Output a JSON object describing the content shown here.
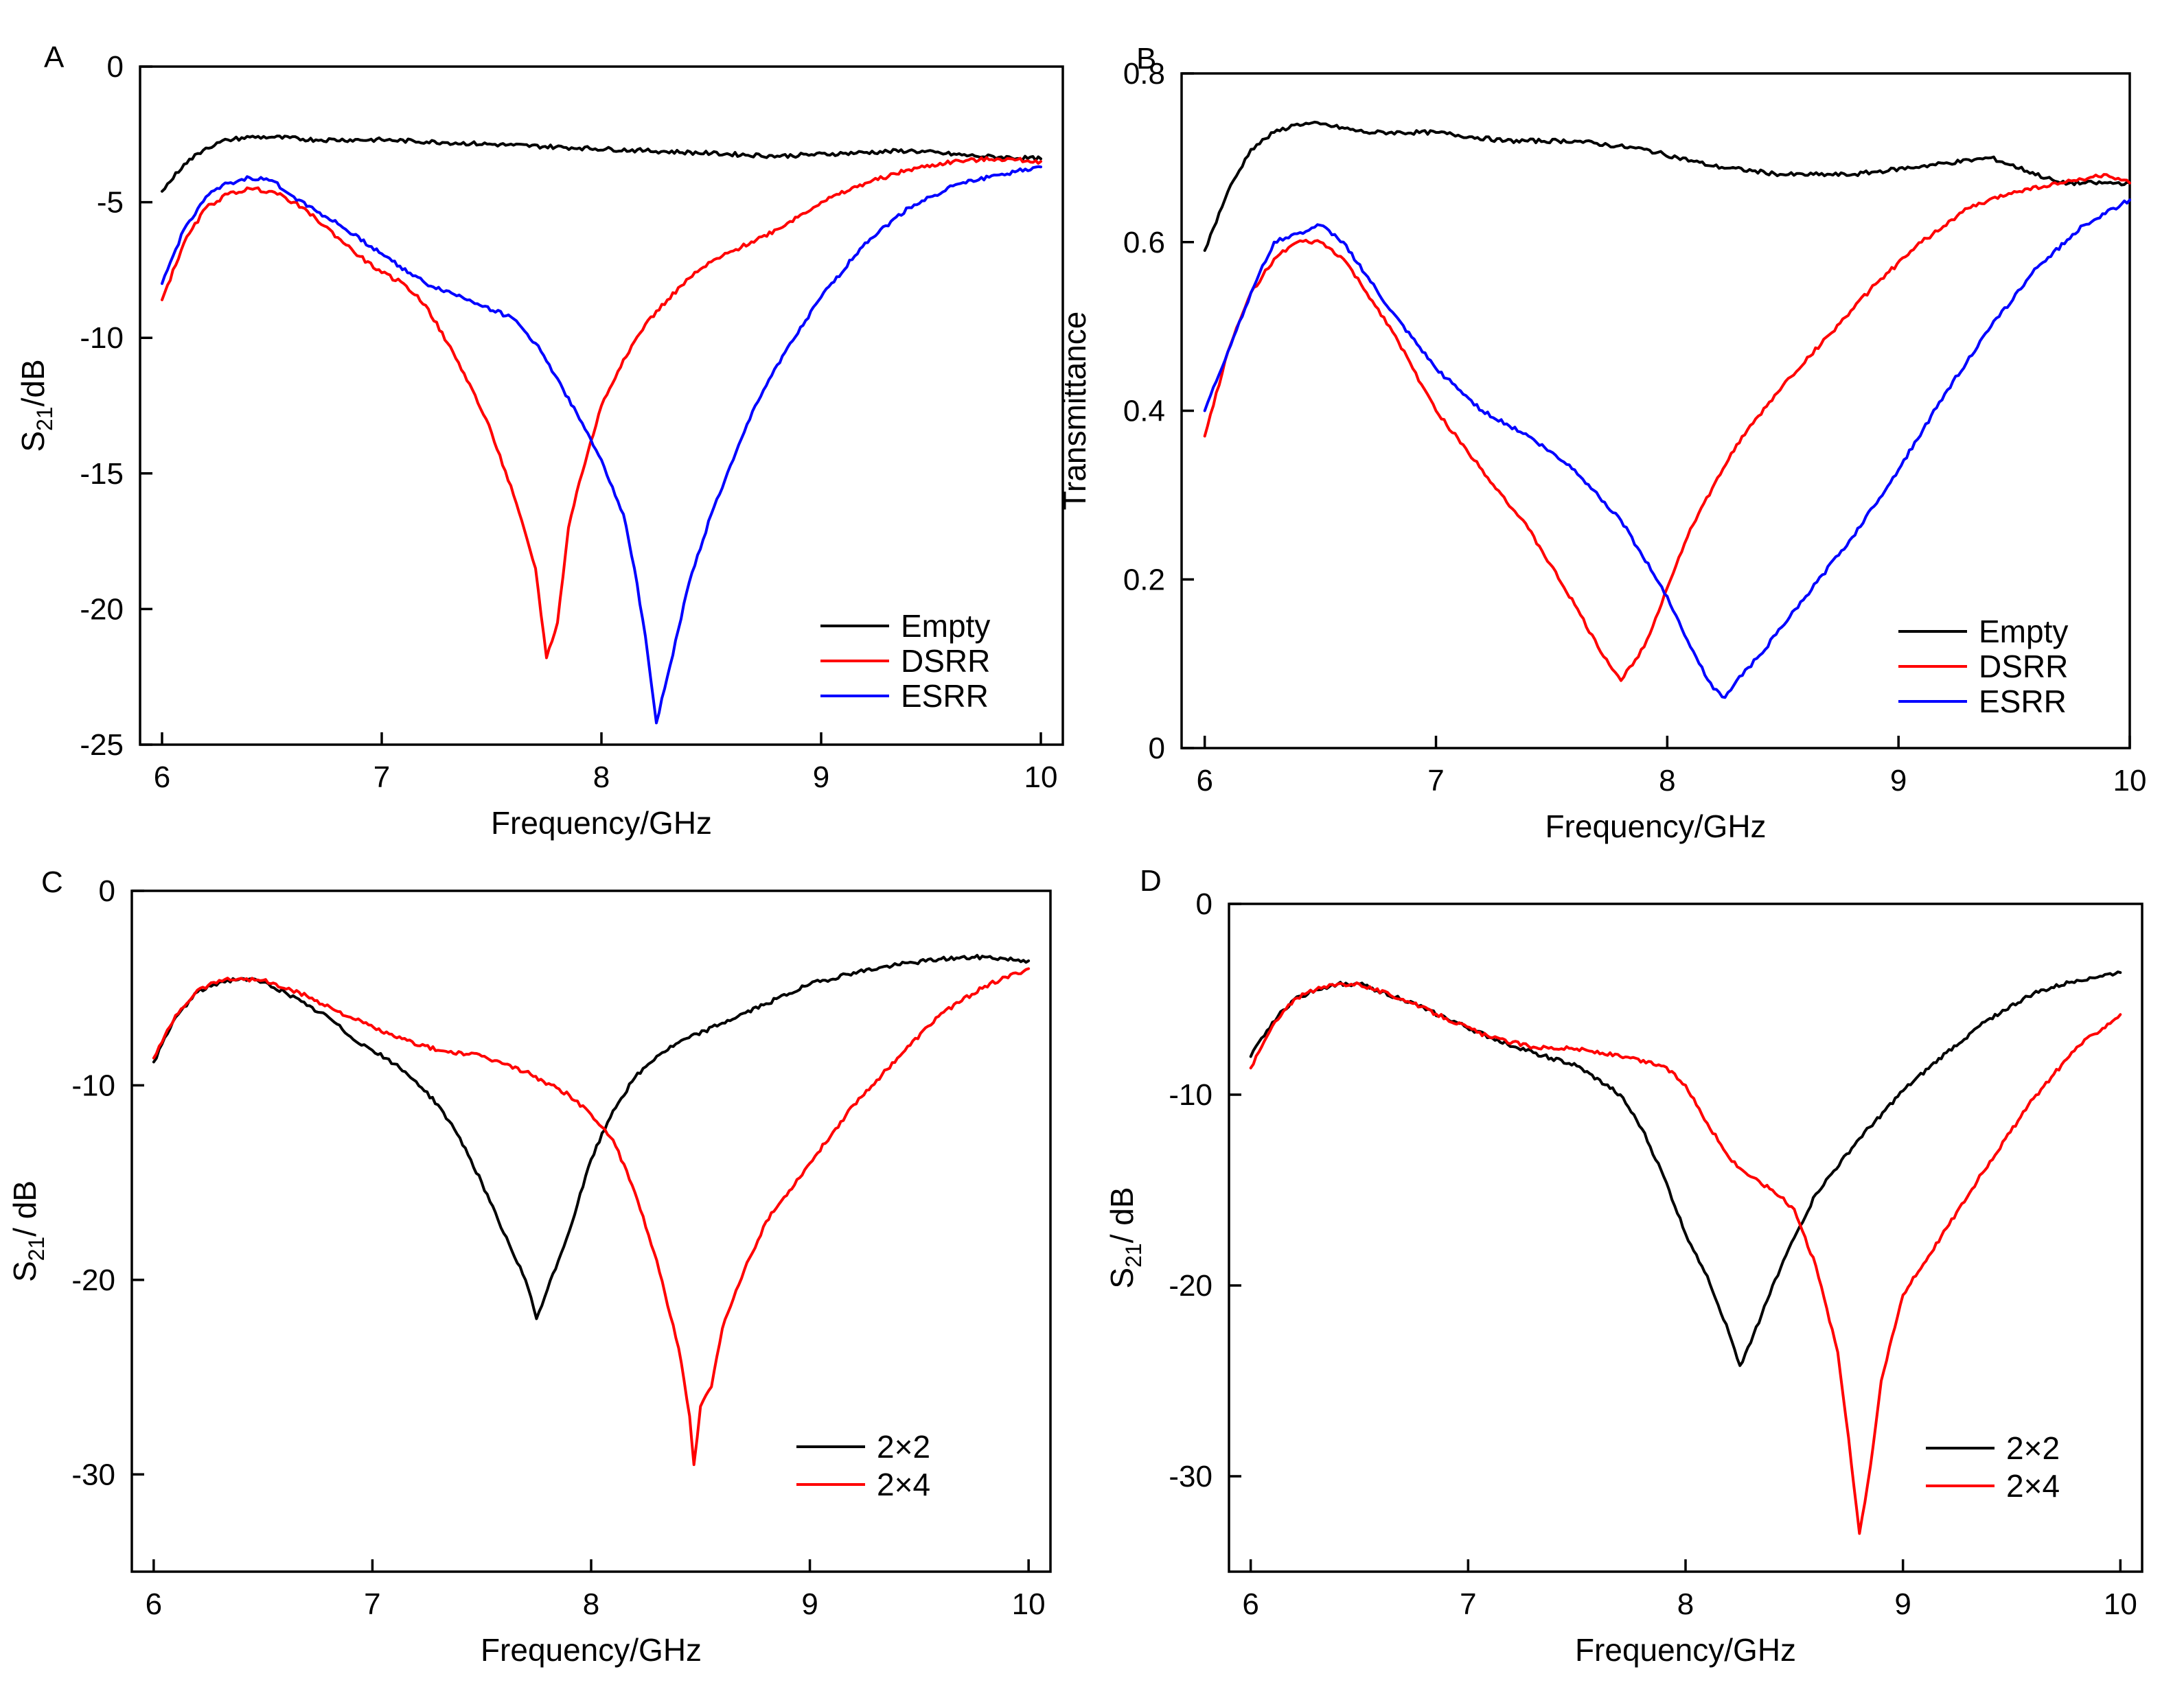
{
  "colors": {
    "black": "#000000",
    "red": "#ff0000",
    "blue": "#0000ff"
  },
  "chart_data": [
    {
      "id": "A",
      "type": "line",
      "panel_label": "A",
      "xlabel": "Frequency/GHz",
      "ylabel_main": "S",
      "ylabel_sub": "21",
      "ylabel_rest": "/dB",
      "xlim": [
        5.9,
        10.1
      ],
      "ylim": [
        -25,
        0
      ],
      "xticks": [
        6,
        7,
        8,
        9,
        10
      ],
      "yticks": [
        0,
        -5,
        -10,
        -15,
        -20,
        -25
      ],
      "xtick_labels": [
        "6",
        "7",
        "8",
        "9",
        "10"
      ],
      "ytick_labels": [
        "0",
        "-5",
        "-10",
        "-15",
        "-20",
        "-25"
      ],
      "legend": {
        "position": "bottom-right"
      },
      "series": [
        {
          "name": "Empty",
          "color": "#000000",
          "x": [
            6.0,
            6.1,
            6.2,
            6.3,
            6.4,
            6.5,
            6.7,
            7.0,
            7.3,
            7.6,
            7.9,
            8.2,
            8.5,
            8.8,
            9.1,
            9.4,
            9.7,
            10.0
          ],
          "y": [
            -4.6,
            -3.6,
            -3.0,
            -2.7,
            -2.6,
            -2.6,
            -2.7,
            -2.7,
            -2.8,
            -2.9,
            -3.0,
            -3.1,
            -3.2,
            -3.3,
            -3.2,
            -3.1,
            -3.3,
            -3.4
          ]
        },
        {
          "name": "DSRR",
          "color": "#ff0000",
          "x": [
            6.0,
            6.1,
            6.2,
            6.3,
            6.4,
            6.5,
            6.6,
            6.7,
            6.8,
            6.9,
            7.0,
            7.1,
            7.2,
            7.3,
            7.4,
            7.5,
            7.6,
            7.7,
            7.75,
            7.8,
            7.85,
            7.9,
            8.0,
            8.1,
            8.2,
            8.3,
            8.4,
            8.5,
            8.6,
            8.8,
            9.0,
            9.2,
            9.4,
            9.6,
            9.8,
            10.0
          ],
          "y": [
            -8.6,
            -6.5,
            -5.2,
            -4.7,
            -4.5,
            -4.6,
            -5.0,
            -5.6,
            -6.3,
            -7.0,
            -7.6,
            -8.0,
            -8.8,
            -10.2,
            -11.7,
            -13.5,
            -15.8,
            -18.5,
            -21.8,
            -20.5,
            -17.0,
            -15.3,
            -12.5,
            -10.8,
            -9.5,
            -8.6,
            -7.8,
            -7.2,
            -6.8,
            -6.0,
            -5.0,
            -4.3,
            -3.8,
            -3.5,
            -3.4,
            -3.5
          ]
        },
        {
          "name": "ESRR",
          "color": "#0000ff",
          "x": [
            6.0,
            6.1,
            6.2,
            6.3,
            6.4,
            6.5,
            6.6,
            6.8,
            7.0,
            7.2,
            7.4,
            7.6,
            7.7,
            7.8,
            7.9,
            8.0,
            8.1,
            8.15,
            8.2,
            8.25,
            8.3,
            8.4,
            8.5,
            8.6,
            8.7,
            8.8,
            9.0,
            9.2,
            9.4,
            9.6,
            9.8,
            10.0
          ],
          "y": [
            -8.0,
            -6.0,
            -4.8,
            -4.3,
            -4.1,
            -4.2,
            -4.8,
            -5.8,
            -6.9,
            -8.0,
            -8.6,
            -9.3,
            -10.2,
            -11.5,
            -13.0,
            -14.5,
            -16.5,
            -18.5,
            -21.0,
            -24.2,
            -22.5,
            -19.0,
            -16.5,
            -14.5,
            -12.5,
            -11.0,
            -8.5,
            -6.5,
            -5.2,
            -4.4,
            -4.0,
            -3.7
          ]
        }
      ]
    },
    {
      "id": "B",
      "type": "line",
      "panel_label": "B",
      "xlabel": "Frequency/GHz",
      "ylabel": "Transmittance",
      "xlim": [
        5.9,
        10.0
      ],
      "ylim": [
        0,
        0.8
      ],
      "xticks": [
        6,
        7,
        8,
        9,
        10
      ],
      "yticks": [
        0,
        0.2,
        0.4,
        0.6,
        0.8
      ],
      "xtick_labels": [
        "6",
        "7",
        "8",
        "9",
        "10"
      ],
      "ytick_labels": [
        "0",
        "0.2",
        "0.4",
        "0.6",
        "0.8"
      ],
      "legend": {
        "position": "bottom-right"
      },
      "series": [
        {
          "name": "Empty",
          "color": "#000000",
          "x": [
            6.0,
            6.1,
            6.2,
            6.3,
            6.4,
            6.5,
            6.7,
            7.0,
            7.3,
            7.6,
            7.9,
            8.2,
            8.5,
            8.8,
            9.1,
            9.4,
            9.7,
            10.0
          ],
          "y": [
            0.59,
            0.66,
            0.71,
            0.73,
            0.74,
            0.74,
            0.73,
            0.73,
            0.72,
            0.72,
            0.71,
            0.69,
            0.68,
            0.68,
            0.69,
            0.7,
            0.67,
            0.67
          ]
        },
        {
          "name": "DSRR",
          "color": "#ff0000",
          "x": [
            6.0,
            6.1,
            6.2,
            6.3,
            6.4,
            6.5,
            6.6,
            6.7,
            6.8,
            6.9,
            7.0,
            7.2,
            7.4,
            7.6,
            7.7,
            7.8,
            7.9,
            8.0,
            8.1,
            8.3,
            8.5,
            8.7,
            8.9,
            9.1,
            9.3,
            9.5,
            9.7,
            9.9,
            10.0
          ],
          "y": [
            0.37,
            0.47,
            0.54,
            0.58,
            0.6,
            0.6,
            0.58,
            0.54,
            0.5,
            0.45,
            0.4,
            0.33,
            0.26,
            0.17,
            0.12,
            0.08,
            0.12,
            0.19,
            0.26,
            0.36,
            0.43,
            0.49,
            0.55,
            0.6,
            0.64,
            0.66,
            0.67,
            0.68,
            0.67
          ]
        },
        {
          "name": "ESRR",
          "color": "#0000ff",
          "x": [
            6.0,
            6.1,
            6.2,
            6.3,
            6.4,
            6.5,
            6.6,
            6.8,
            7.0,
            7.2,
            7.4,
            7.6,
            7.8,
            8.0,
            8.1,
            8.2,
            8.25,
            8.3,
            8.4,
            8.6,
            8.8,
            9.0,
            9.2,
            9.4,
            9.6,
            9.8,
            10.0
          ],
          "y": [
            0.4,
            0.47,
            0.54,
            0.6,
            0.61,
            0.62,
            0.6,
            0.52,
            0.45,
            0.4,
            0.37,
            0.33,
            0.27,
            0.18,
            0.12,
            0.07,
            0.06,
            0.08,
            0.11,
            0.18,
            0.25,
            0.33,
            0.42,
            0.5,
            0.57,
            0.62,
            0.65
          ]
        }
      ]
    },
    {
      "id": "C",
      "type": "line",
      "panel_label": "C",
      "xlabel": "Frequency/GHz",
      "ylabel_main": "S",
      "ylabel_sub": "21",
      "ylabel_rest": "/ dB",
      "xlim": [
        5.9,
        10.1
      ],
      "ylim": [
        -35,
        0
      ],
      "xticks": [
        6,
        7,
        8,
        9,
        10
      ],
      "yticks": [
        0,
        -10,
        -20,
        -30
      ],
      "xtick_labels": [
        "6",
        "7",
        "8",
        "9",
        "10"
      ],
      "ytick_labels": [
        "0",
        "-10",
        "-20",
        "-30"
      ],
      "legend": {
        "position": "bottom-right"
      },
      "series": [
        {
          "name": "2×2",
          "color": "#000000",
          "x": [
            6.0,
            6.1,
            6.2,
            6.3,
            6.4,
            6.5,
            6.6,
            6.7,
            6.8,
            6.9,
            7.0,
            7.1,
            7.2,
            7.3,
            7.4,
            7.5,
            7.6,
            7.7,
            7.75,
            7.8,
            7.9,
            8.0,
            8.1,
            8.2,
            8.3,
            8.4,
            8.6,
            8.8,
            9.0,
            9.2,
            9.4,
            9.6,
            9.8,
            10.0
          ],
          "y": [
            -8.8,
            -6.5,
            -5.2,
            -4.7,
            -4.5,
            -4.7,
            -5.2,
            -5.9,
            -6.5,
            -7.5,
            -8.2,
            -8.9,
            -9.8,
            -11.0,
            -12.7,
            -15.0,
            -17.6,
            -20.0,
            -22.0,
            -20.5,
            -17.5,
            -13.8,
            -11.3,
            -9.6,
            -8.5,
            -7.8,
            -6.8,
            -5.8,
            -4.8,
            -4.2,
            -3.8,
            -3.5,
            -3.4,
            -3.6
          ]
        },
        {
          "name": "2×4",
          "color": "#ff0000",
          "x": [
            6.0,
            6.1,
            6.2,
            6.3,
            6.4,
            6.5,
            6.7,
            6.9,
            7.1,
            7.3,
            7.5,
            7.7,
            7.9,
            8.0,
            8.1,
            8.2,
            8.3,
            8.4,
            8.45,
            8.47,
            8.5,
            8.55,
            8.6,
            8.7,
            8.8,
            9.0,
            9.2,
            9.4,
            9.6,
            9.8,
            10.0
          ],
          "y": [
            -8.6,
            -6.4,
            -5.1,
            -4.6,
            -4.5,
            -4.6,
            -5.4,
            -6.5,
            -7.5,
            -8.2,
            -8.5,
            -9.3,
            -10.5,
            -11.5,
            -12.8,
            -15.5,
            -19.0,
            -23.5,
            -27.0,
            -29.5,
            -26.5,
            -25.5,
            -22.5,
            -19.5,
            -17.0,
            -14.0,
            -11.0,
            -8.6,
            -6.3,
            -4.9,
            -4.0
          ]
        }
      ]
    },
    {
      "id": "D",
      "type": "line",
      "panel_label": "D",
      "xlabel": "Frequency/GHz",
      "ylabel_main": "S",
      "ylabel_sub": "21",
      "ylabel_rest": "/ dB",
      "xlim": [
        5.9,
        10.1
      ],
      "ylim": [
        -35,
        0
      ],
      "xticks": [
        6,
        7,
        8,
        9,
        10
      ],
      "yticks": [
        0,
        -10,
        -20,
        -30
      ],
      "xtick_labels": [
        "6",
        "7",
        "8",
        "9",
        "10"
      ],
      "ytick_labels": [
        "0",
        "-10",
        "-20",
        "-30"
      ],
      "legend": {
        "position": "bottom-right"
      },
      "series": [
        {
          "name": "2×2",
          "color": "#000000",
          "x": [
            6.0,
            6.1,
            6.2,
            6.3,
            6.4,
            6.5,
            6.7,
            6.9,
            7.1,
            7.3,
            7.5,
            7.7,
            7.8,
            7.9,
            8.0,
            8.1,
            8.2,
            8.25,
            8.3,
            8.4,
            8.5,
            8.6,
            8.8,
            9.0,
            9.2,
            9.4,
            9.6,
            9.8,
            10.0
          ],
          "y": [
            -8.0,
            -6.2,
            -5.0,
            -4.5,
            -4.2,
            -4.2,
            -5.0,
            -6.0,
            -7.0,
            -7.8,
            -8.5,
            -10.0,
            -11.8,
            -14.3,
            -17.3,
            -19.5,
            -22.5,
            -24.2,
            -23.0,
            -20.0,
            -17.5,
            -15.2,
            -12.3,
            -9.8,
            -7.8,
            -6.0,
            -4.7,
            -4.0,
            -3.6
          ]
        },
        {
          "name": "2×4",
          "color": "#ff0000",
          "x": [
            6.0,
            6.1,
            6.2,
            6.3,
            6.4,
            6.5,
            6.7,
            6.9,
            7.1,
            7.3,
            7.5,
            7.7,
            7.9,
            8.0,
            8.1,
            8.2,
            8.3,
            8.4,
            8.5,
            8.6,
            8.7,
            8.75,
            8.8,
            8.85,
            8.9,
            9.0,
            9.2,
            9.4,
            9.6,
            9.8,
            10.0
          ],
          "y": [
            -8.6,
            -6.4,
            -5.0,
            -4.5,
            -4.2,
            -4.2,
            -5.0,
            -6.0,
            -7.0,
            -7.5,
            -7.6,
            -8.0,
            -8.5,
            -9.5,
            -11.5,
            -13.3,
            -14.3,
            -15.0,
            -16.0,
            -19.0,
            -23.5,
            -28.0,
            -33.0,
            -29.5,
            -25.0,
            -20.5,
            -17.0,
            -13.5,
            -10.2,
            -7.5,
            -5.8
          ]
        }
      ]
    }
  ]
}
